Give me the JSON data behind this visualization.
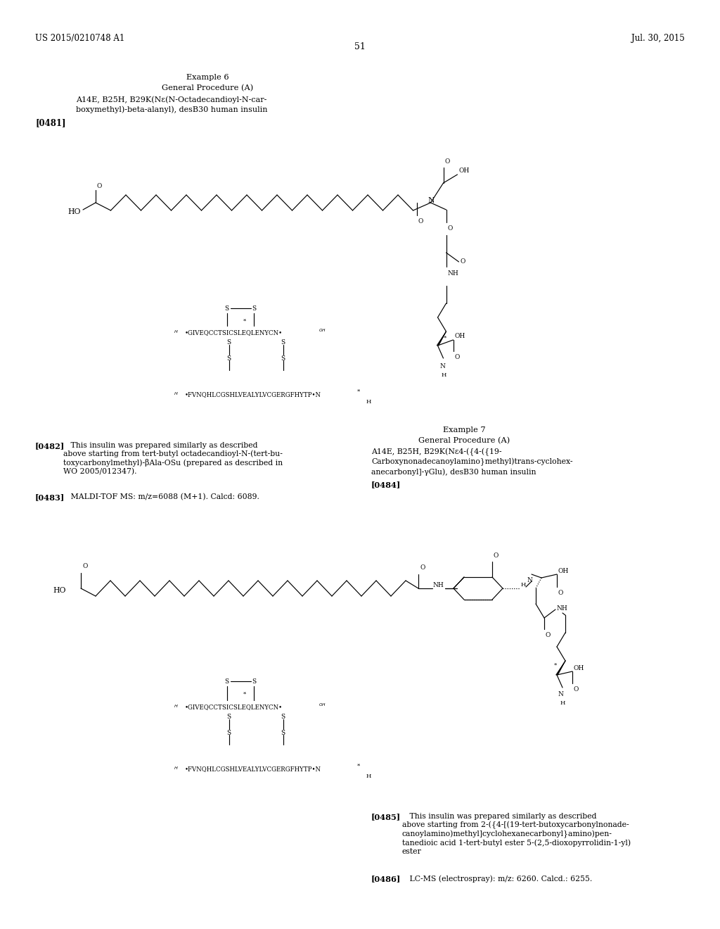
{
  "page_header_left": "US 2015/0210748 A1",
  "page_header_right": "Jul. 30, 2015",
  "page_number": "51",
  "background_color": "#ffffff",
  "example6_title": "Example 6",
  "example6_procedure": "General Procedure (A)",
  "example6_compound_line1": "A14E, B25H, B29K(Nε(N-Octadecandioyl-N-car-",
  "example6_compound_line2": "boxymethyl)-beta-alanyl), desB30 human insulin",
  "example6_tag": "[0481]",
  "example7_title": "Example 7",
  "example7_procedure": "General Procedure (A)",
  "example7_compound_line1": "A14E, B25H, B29K(Nε4-({4-({19-",
  "example7_compound_line2": "Carboxynonadecanoylamino}methyl)trans-cyclohex-",
  "example7_compound_line3": "anecarbonyl]-γGlu), desB30 human insulin",
  "example7_tag": "[0484]",
  "para_0482_tag": "[0482]",
  "para_0482_text": "   This insulin was prepared similarly as described\nabove starting from tert-butyl octadecandioyl-N-(tert-bu-\ntoxycarbonylmethyl)-βAla-OSu (prepared as described in\nWO 2005/012347).",
  "para_0483_tag": "[0483]",
  "para_0483_text": "   MALDI-TOF MS: m/z=6088 (M+1). Calcd: 6089.",
  "para_0485_tag": "[0485]",
  "para_0485_text": "   This insulin was prepared similarly as described\nabove starting from 2-({4-[(19-tert-butoxycarbonylnonade-\ncanoylamino)methyl]cyclohexanecarbonyl}amino)pen-\ntanedioic acid 1-tert-butyl ester 5-(2,5-dioxopyrrolidin-1-yl)\nester",
  "para_0486_tag": "[0486]",
  "para_0486_text": "   LC-MS (electrospray): m/z: 6260. Calcd.: 6255.",
  "chainA_text": "GIVEQCCTSICSLEQLENYCN",
  "chainB_text": "FVNQHLCGSHLVEALYLVCGERGFHYTP"
}
